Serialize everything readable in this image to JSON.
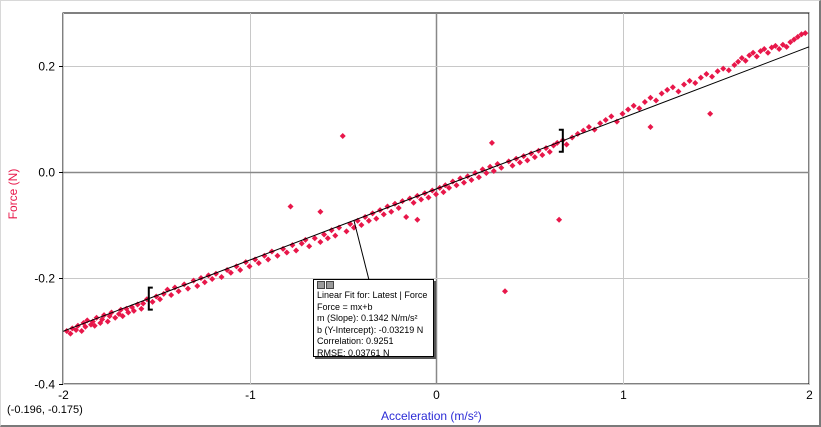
{
  "x_axis_label": "Acceleration (m/s²)",
  "y_axis_label": "Force (N)",
  "cursor_readout": "(-0.196, -0.175)",
  "fit_box": {
    "title": "Linear Fit for: Latest | Force",
    "equation": "Force = mx+b",
    "slope": "m (Slope): 0.1342 N/m/s²",
    "intercept": "b (Y-Intercept): -0.03219 N",
    "correlation": "Correlation: 0.9251",
    "rmse": "RMSE: 0.03761 N"
  },
  "colors": {
    "points": "#e8174a",
    "fit_line": "#000000",
    "grid": "#c8c8c8",
    "axis_zero": "#888888",
    "y_label": "#e8174a",
    "x_label": "#2b2bd6"
  },
  "chart_data": {
    "type": "scatter",
    "xlabel": "Acceleration (m/s²)",
    "ylabel": "Force (N)",
    "xlim": [
      -2,
      2
    ],
    "ylim": [
      -0.4,
      0.3
    ],
    "xticks": [
      "-2",
      "-1",
      "0",
      "1",
      "2"
    ],
    "yticks": [
      "-0.4",
      "-0.2",
      "0.0",
      "0.2"
    ],
    "ytick_values": [
      -0.4,
      -0.2,
      0.0,
      0.2
    ],
    "xtick_values": [
      -2,
      -1,
      0,
      1,
      2
    ],
    "grid": true,
    "fit": {
      "slope": 0.1342,
      "intercept": -0.03219
    },
    "points": [
      [
        -1.98,
        -0.3
      ],
      [
        -1.96,
        -0.305
      ],
      [
        -1.95,
        -0.295
      ],
      [
        -1.93,
        -0.298
      ],
      [
        -1.92,
        -0.29
      ],
      [
        -1.9,
        -0.3
      ],
      [
        -1.89,
        -0.285
      ],
      [
        -1.88,
        -0.292
      ],
      [
        -1.87,
        -0.28
      ],
      [
        -1.85,
        -0.288
      ],
      [
        -1.84,
        -0.282
      ],
      [
        -1.83,
        -0.29
      ],
      [
        -1.82,
        -0.275
      ],
      [
        -1.8,
        -0.285
      ],
      [
        -1.79,
        -0.278
      ],
      [
        -1.78,
        -0.27
      ],
      [
        -1.76,
        -0.282
      ],
      [
        -1.75,
        -0.272
      ],
      [
        -1.74,
        -0.265
      ],
      [
        -1.72,
        -0.275
      ],
      [
        -1.7,
        -0.268
      ],
      [
        -1.69,
        -0.26
      ],
      [
        -1.68,
        -0.272
      ],
      [
        -1.66,
        -0.258
      ],
      [
        -1.65,
        -0.265
      ],
      [
        -1.63,
        -0.255
      ],
      [
        -1.62,
        -0.262
      ],
      [
        -1.6,
        -0.25
      ],
      [
        -1.58,
        -0.258
      ],
      [
        -1.57,
        -0.248
      ],
      [
        -1.55,
        -0.24
      ],
      [
        -1.52,
        -0.245
      ],
      [
        -1.5,
        -0.235
      ],
      [
        -1.48,
        -0.24
      ],
      [
        -1.46,
        -0.23
      ],
      [
        -1.44,
        -0.222
      ],
      [
        -1.42,
        -0.232
      ],
      [
        -1.4,
        -0.218
      ],
      [
        -1.38,
        -0.225
      ],
      [
        -1.35,
        -0.212
      ],
      [
        -1.33,
        -0.22
      ],
      [
        -1.3,
        -0.205
      ],
      [
        -1.28,
        -0.215
      ],
      [
        -1.26,
        -0.2
      ],
      [
        -1.24,
        -0.208
      ],
      [
        -1.22,
        -0.195
      ],
      [
        -1.2,
        -0.202
      ],
      [
        -1.18,
        -0.192
      ],
      [
        -1.15,
        -0.198
      ],
      [
        -1.12,
        -0.185
      ],
      [
        -1.1,
        -0.19
      ],
      [
        -1.07,
        -0.178
      ],
      [
        -1.05,
        -0.185
      ],
      [
        -1.02,
        -0.17
      ],
      [
        -1.0,
        -0.178
      ],
      [
        -0.97,
        -0.165
      ],
      [
        -0.95,
        -0.172
      ],
      [
        -0.92,
        -0.158
      ],
      [
        -0.9,
        -0.165
      ],
      [
        -0.88,
        -0.15
      ],
      [
        -0.85,
        -0.158
      ],
      [
        -0.82,
        -0.145
      ],
      [
        -0.8,
        -0.152
      ],
      [
        -0.78,
        -0.065
      ],
      [
        -0.77,
        -0.138
      ],
      [
        -0.75,
        -0.148
      ],
      [
        -0.72,
        -0.135
      ],
      [
        -0.7,
        -0.128
      ],
      [
        -0.68,
        -0.14
      ],
      [
        -0.65,
        -0.125
      ],
      [
        -0.62,
        -0.132
      ],
      [
        -0.6,
        -0.118
      ],
      [
        -0.58,
        -0.125
      ],
      [
        -0.56,
        -0.11
      ],
      [
        -0.54,
        -0.12
      ],
      [
        -0.52,
        -0.105
      ],
      [
        -0.5,
        0.068
      ],
      [
        -0.48,
        -0.112
      ],
      [
        -0.46,
        -0.098
      ],
      [
        -0.44,
        -0.105
      ],
      [
        -0.42,
        -0.092
      ],
      [
        -0.4,
        -0.1
      ],
      [
        -0.38,
        -0.085
      ],
      [
        -0.36,
        -0.092
      ],
      [
        -0.34,
        -0.078
      ],
      [
        -0.32,
        -0.088
      ],
      [
        -0.3,
        -0.072
      ],
      [
        -0.28,
        -0.08
      ],
      [
        -0.26,
        -0.065
      ],
      [
        -0.24,
        -0.075
      ],
      [
        -0.22,
        -0.06
      ],
      [
        -0.2,
        -0.068
      ],
      [
        -0.18,
        -0.055
      ],
      [
        -0.16,
        -0.085
      ],
      [
        -0.14,
        -0.05
      ],
      [
        -0.12,
        -0.058
      ],
      [
        -0.1,
        -0.045
      ],
      [
        -0.08,
        -0.052
      ],
      [
        -0.06,
        -0.04
      ],
      [
        -0.04,
        -0.048
      ],
      [
        -0.02,
        -0.035
      ],
      [
        0.0,
        -0.042
      ],
      [
        0.02,
        -0.03
      ],
      [
        0.04,
        -0.038
      ],
      [
        0.05,
        -0.025
      ],
      [
        0.07,
        -0.03
      ],
      [
        0.09,
        -0.018
      ],
      [
        0.11,
        -0.025
      ],
      [
        0.13,
        -0.012
      ],
      [
        0.15,
        -0.02
      ],
      [
        0.17,
        -0.008
      ],
      [
        0.19,
        -0.015
      ],
      [
        0.21,
        -0.002
      ],
      [
        0.23,
        -0.01
      ],
      [
        0.25,
        0.005
      ],
      [
        0.27,
        -0.002
      ],
      [
        0.29,
        0.01
      ],
      [
        0.31,
        0.002
      ],
      [
        0.33,
        0.015
      ],
      [
        0.35,
        0.008
      ],
      [
        0.37,
        -0.225
      ],
      [
        0.39,
        0.02
      ],
      [
        0.41,
        0.012
      ],
      [
        0.43,
        0.025
      ],
      [
        0.45,
        0.018
      ],
      [
        0.47,
        0.03
      ],
      [
        0.49,
        0.022
      ],
      [
        0.51,
        0.035
      ],
      [
        0.53,
        0.028
      ],
      [
        0.55,
        0.04
      ],
      [
        0.57,
        0.032
      ],
      [
        0.59,
        0.045
      ],
      [
        0.61,
        0.038
      ],
      [
        0.63,
        0.05
      ],
      [
        0.65,
        0.055
      ],
      [
        0.66,
        -0.09
      ],
      [
        0.68,
        0.06
      ],
      [
        0.7,
        0.052
      ],
      [
        0.73,
        0.065
      ],
      [
        0.76,
        0.072
      ],
      [
        0.79,
        0.078
      ],
      [
        0.82,
        0.085
      ],
      [
        0.85,
        0.08
      ],
      [
        0.88,
        0.092
      ],
      [
        0.91,
        0.098
      ],
      [
        0.94,
        0.105
      ],
      [
        0.97,
        0.095
      ],
      [
        1.0,
        0.11
      ],
      [
        1.03,
        0.118
      ],
      [
        1.06,
        0.125
      ],
      [
        1.09,
        0.12
      ],
      [
        1.12,
        0.132
      ],
      [
        1.15,
        0.14
      ],
      [
        1.18,
        0.135
      ],
      [
        1.21,
        0.148
      ],
      [
        1.24,
        0.155
      ],
      [
        1.27,
        0.16
      ],
      [
        1.3,
        0.152
      ],
      [
        1.33,
        0.165
      ],
      [
        1.36,
        0.172
      ],
      [
        1.39,
        0.168
      ],
      [
        1.42,
        0.178
      ],
      [
        1.45,
        0.185
      ],
      [
        1.48,
        0.18
      ],
      [
        1.51,
        0.19
      ],
      [
        1.54,
        0.195
      ],
      [
        1.57,
        0.192
      ],
      [
        1.6,
        0.202
      ],
      [
        1.62,
        0.208
      ],
      [
        1.64,
        0.215
      ],
      [
        1.66,
        0.21
      ],
      [
        1.68,
        0.22
      ],
      [
        1.7,
        0.225
      ],
      [
        1.72,
        0.218
      ],
      [
        1.74,
        0.228
      ],
      [
        1.76,
        0.232
      ],
      [
        1.78,
        0.225
      ],
      [
        1.8,
        0.235
      ],
      [
        1.82,
        0.238
      ],
      [
        1.84,
        0.232
      ],
      [
        1.86,
        0.24
      ],
      [
        1.88,
        0.236
      ],
      [
        1.9,
        0.245
      ],
      [
        1.92,
        0.25
      ],
      [
        1.94,
        0.255
      ],
      [
        1.96,
        0.26
      ],
      [
        1.98,
        0.262
      ],
      [
        1.47,
        0.11
      ],
      [
        1.15,
        0.085
      ],
      [
        0.3,
        0.055
      ],
      [
        -0.1,
        -0.09
      ],
      [
        -0.62,
        -0.075
      ]
    ]
  }
}
